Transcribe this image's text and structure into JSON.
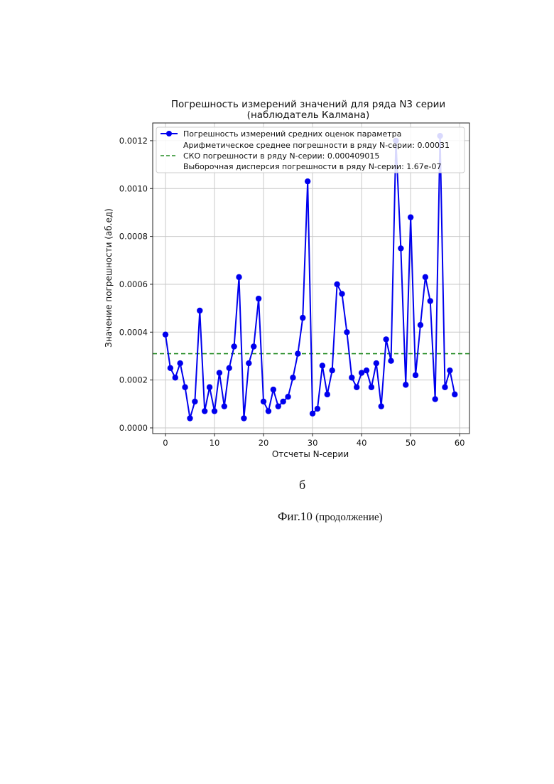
{
  "chart_data": {
    "type": "line",
    "title": "Погрешность измерений значений для ряда N3 серии",
    "subtitle": "(наблюдатель Калмана)",
    "xlabel": "Отсчеты N-серии",
    "ylabel": "Значение погрешности (аб.ед)",
    "xlim": [
      -2.6,
      62
    ],
    "ylim": [
      -2.38e-05,
      0.001274
    ],
    "xticks": [
      "0",
      "10",
      "20",
      "30",
      "40",
      "50",
      "60"
    ],
    "xtick_values": [
      0,
      10,
      20,
      30,
      40,
      50,
      60
    ],
    "yticks": [
      "0.0000",
      "0.0002",
      "0.0004",
      "0.0006",
      "0.0008",
      "0.0010",
      "0.0012"
    ],
    "ytick_values": [
      0,
      0.0002,
      0.0004,
      0.0006,
      0.0008,
      0.001,
      0.0012
    ],
    "grid": true,
    "legend_position": "top-right",
    "series": [
      {
        "name": "Погрешность измерений средних оценок параметра",
        "color": "#0000ee",
        "style": "line-marker",
        "x": [
          0,
          1,
          2,
          3,
          4,
          5,
          6,
          7,
          8,
          9,
          10,
          11,
          12,
          13,
          14,
          15,
          16,
          17,
          18,
          19,
          20,
          21,
          22,
          23,
          24,
          25,
          26,
          27,
          28,
          29,
          30,
          31,
          32,
          33,
          34,
          35,
          36,
          37,
          38,
          39,
          40,
          41,
          42,
          43,
          44,
          45,
          46,
          47,
          48,
          49,
          50,
          51,
          52,
          53,
          54,
          55,
          56,
          57,
          58,
          59
        ],
        "values": [
          0.00039,
          0.00025,
          0.00021,
          0.00027,
          0.00017,
          4e-05,
          0.00011,
          0.00049,
          7e-05,
          0.00017,
          7e-05,
          0.00023,
          9e-05,
          0.00025,
          0.00034,
          0.00063,
          4e-05,
          0.00027,
          0.00034,
          0.00054,
          0.00011,
          7e-05,
          0.00016,
          9e-05,
          0.00011,
          0.00013,
          0.00021,
          0.00031,
          0.00046,
          0.00103,
          6e-05,
          8e-05,
          0.00026,
          0.00014,
          0.00024,
          0.0006,
          0.00056,
          0.0004,
          0.00021,
          0.00017,
          0.00023,
          0.00024,
          0.00017,
          0.00027,
          9e-05,
          0.00037,
          0.00028,
          0.0012,
          0.00075,
          0.00018,
          0.00088,
          0.00022,
          0.00043,
          0.00063,
          0.00053,
          0.00012,
          0.00122,
          0.00017,
          0.00024,
          0.00014
        ]
      },
      {
        "name": "СКО погрешности в ряду N-серии: 0.000409015",
        "color": "#228b22",
        "style": "dashed-hline",
        "value": 0.00031
      }
    ],
    "legend": [
      "Погрешность измерений средних оценок параметра",
      "Арифметическое среднее погрешности в ряду N-серии: 0.00031",
      "СКО погрешности в ряду N-серии: 0.000409015",
      "Выборочная дисперсия погрешности в ряду N-серии: 1.67e-07"
    ]
  },
  "captions": {
    "subfigure_letter": "б",
    "figure_label": "Фиг.10",
    "figure_note": "(продолжение)"
  }
}
